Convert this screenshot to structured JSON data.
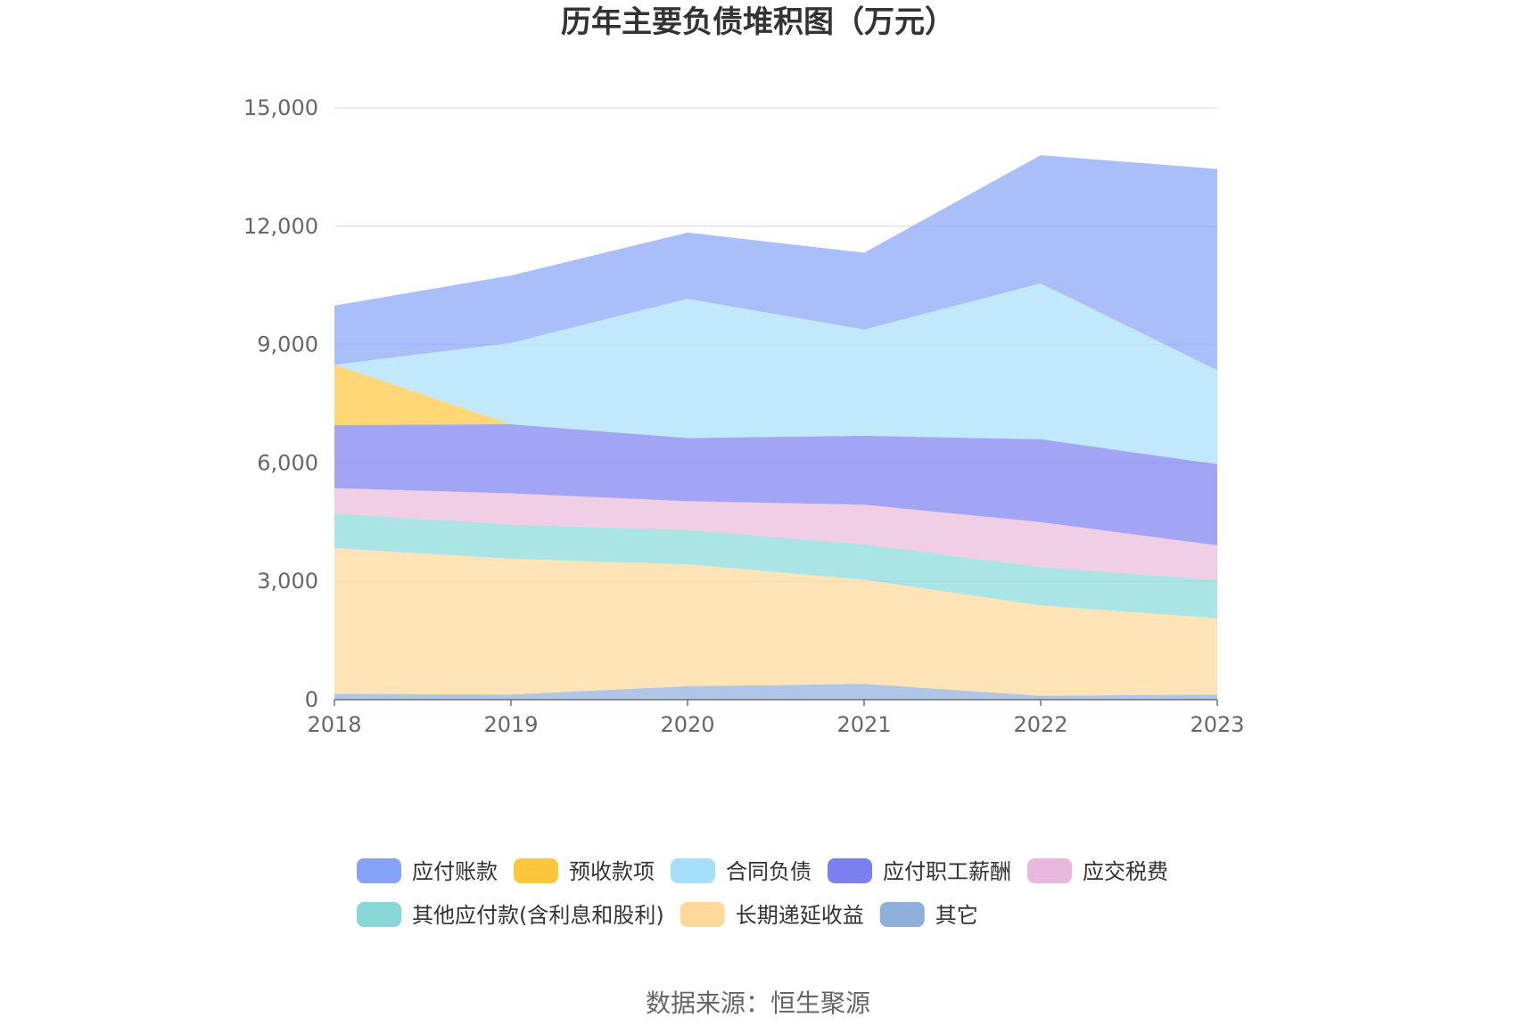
{
  "chart_data": {
    "type": "area",
    "stacked": true,
    "title": "历年主要负债堆积图（万元）",
    "xlabel": "",
    "ylabel": "",
    "categories": [
      "2018",
      "2019",
      "2020",
      "2021",
      "2022",
      "2023"
    ],
    "ylim": [
      0,
      15000
    ],
    "yticks": [
      0,
      3000,
      6000,
      9000,
      12000,
      15000
    ],
    "ytick_labels": [
      "0",
      "3,000",
      "6,000",
      "9,000",
      "12,000",
      "15,000"
    ],
    "grid": true,
    "legend_position": "bottom",
    "series": [
      {
        "name": "其它",
        "color": "#8eaedc",
        "values": [
          150,
          130,
          340,
          400,
          100,
          130
        ]
      },
      {
        "name": "长期递延收益",
        "color": "#ffd99a",
        "values": [
          3690,
          3440,
          3090,
          2640,
          2290,
          1930
        ]
      },
      {
        "name": "其他应付款(含利息和股利)",
        "color": "#88d8d8",
        "values": [
          880,
          870,
          870,
          900,
          970,
          970
        ]
      },
      {
        "name": "应交税费",
        "color": "#e8b9dc",
        "values": [
          640,
          790,
          730,
          1000,
          1140,
          880
        ]
      },
      {
        "name": "应付职工薪酬",
        "color": "#7b7ff0",
        "values": [
          1600,
          1750,
          1600,
          1750,
          2100,
          2060
        ]
      },
      {
        "name": "预收款项",
        "color": "#ffc63d",
        "values": [
          1530,
          0,
          0,
          0,
          0,
          0
        ]
      },
      {
        "name": "合同负债",
        "color": "#a6dff9",
        "values": [
          0,
          2060,
          3530,
          2690,
          3950,
          2380
        ]
      },
      {
        "name": "应付账款",
        "color": "#86a2f8",
        "values": [
          1500,
          1710,
          1680,
          1950,
          3250,
          5100
        ]
      }
    ],
    "legend_order": [
      "应付账款",
      "预收款项",
      "合同负债",
      "应付职工薪酬",
      "应交税费",
      "其他应付款(含利息和股利)",
      "长期递延收益",
      "其它"
    ],
    "source": "数据来源：恒生聚源"
  }
}
